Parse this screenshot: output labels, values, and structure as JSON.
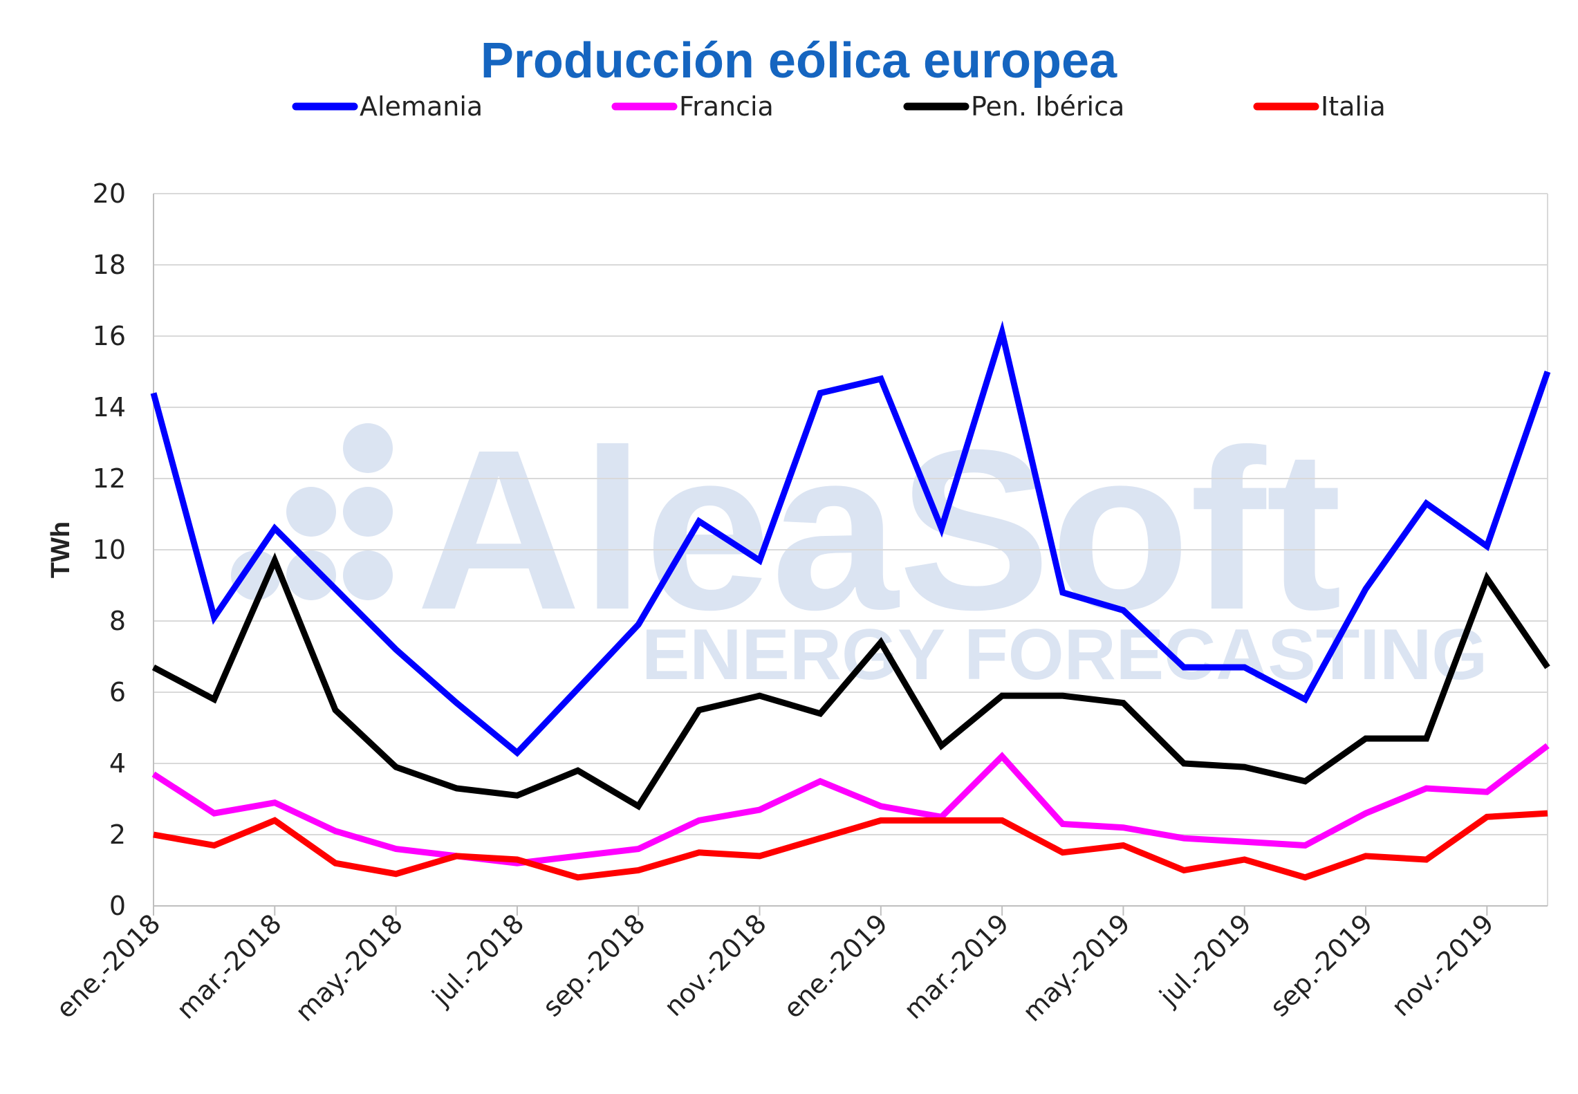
{
  "chart_data": {
    "type": "line",
    "title": "Producción eólica europea",
    "ylabel": "TWh",
    "xlabel": "",
    "ylim": [
      0,
      20
    ],
    "yticks": [
      "0",
      "2",
      "4",
      "6",
      "8",
      "10",
      "12",
      "14",
      "16",
      "18",
      "20"
    ],
    "grid": true,
    "legend_position": "top",
    "x": [
      "ene.-2018",
      "feb.-2018",
      "mar.-2018",
      "abr.-2018",
      "may.-2018",
      "jun.-2018",
      "jul.-2018",
      "ago.-2018",
      "sep.-2018",
      "oct.-2018",
      "nov.-2018",
      "dic.-2018",
      "ene.-2019",
      "feb.-2019",
      "mar.-2019",
      "abr.-2019",
      "may.-2019",
      "jun.-2019",
      "jul.-2019",
      "ago.-2019",
      "sep.-2019",
      "oct.-2019",
      "nov.-2019",
      "dic.-2019"
    ],
    "x_tick_labels": [
      "ene.-2018",
      "mar.-2018",
      "may.-2018",
      "jul.-2018",
      "sep.-2018",
      "nov.-2018",
      "ene.-2019",
      "mar.-2019",
      "may.-2019",
      "jul.-2019",
      "sep.-2019",
      "nov.-2019"
    ],
    "series": [
      {
        "name": "Alemania",
        "color": "#0000ff",
        "values": [
          14.4,
          8.1,
          10.6,
          8.9,
          7.2,
          5.7,
          4.3,
          6.1,
          7.9,
          10.8,
          9.7,
          14.4,
          14.8,
          10.6,
          16.1,
          8.8,
          8.3,
          6.7,
          6.7,
          5.8,
          8.9,
          11.3,
          10.1,
          15.0
        ]
      },
      {
        "name": "Francia",
        "color": "#ff00ff",
        "values": [
          3.7,
          2.6,
          2.9,
          2.1,
          1.6,
          1.4,
          1.2,
          1.4,
          1.6,
          2.4,
          2.7,
          3.5,
          2.8,
          2.5,
          4.2,
          2.3,
          2.2,
          1.9,
          1.8,
          1.7,
          2.6,
          3.3,
          3.2,
          4.5
        ]
      },
      {
        "name": "Pen. Ibérica",
        "color": "#000000",
        "values": [
          6.7,
          5.8,
          9.7,
          5.5,
          3.9,
          3.3,
          3.1,
          3.8,
          2.8,
          5.5,
          5.9,
          5.4,
          7.4,
          4.5,
          5.9,
          5.9,
          5.7,
          4.0,
          3.9,
          3.5,
          4.7,
          4.7,
          9.2,
          6.7
        ]
      },
      {
        "name": "Italia",
        "color": "#ff0000",
        "values": [
          2.0,
          1.7,
          2.4,
          1.2,
          0.9,
          1.4,
          1.3,
          0.8,
          1.0,
          1.5,
          1.4,
          1.9,
          2.4,
          2.4,
          2.4,
          1.5,
          1.7,
          1.0,
          1.3,
          0.8,
          1.4,
          1.3,
          2.5,
          2.6
        ]
      }
    ]
  },
  "watermark": {
    "brand": "AleaSoft",
    "tagline": "ENERGY FORECASTING",
    "color": "#dbe4f2"
  },
  "colors": {
    "title": "#1565c0",
    "grid": "#d9d9d9",
    "axis": "#bfbfbf"
  }
}
